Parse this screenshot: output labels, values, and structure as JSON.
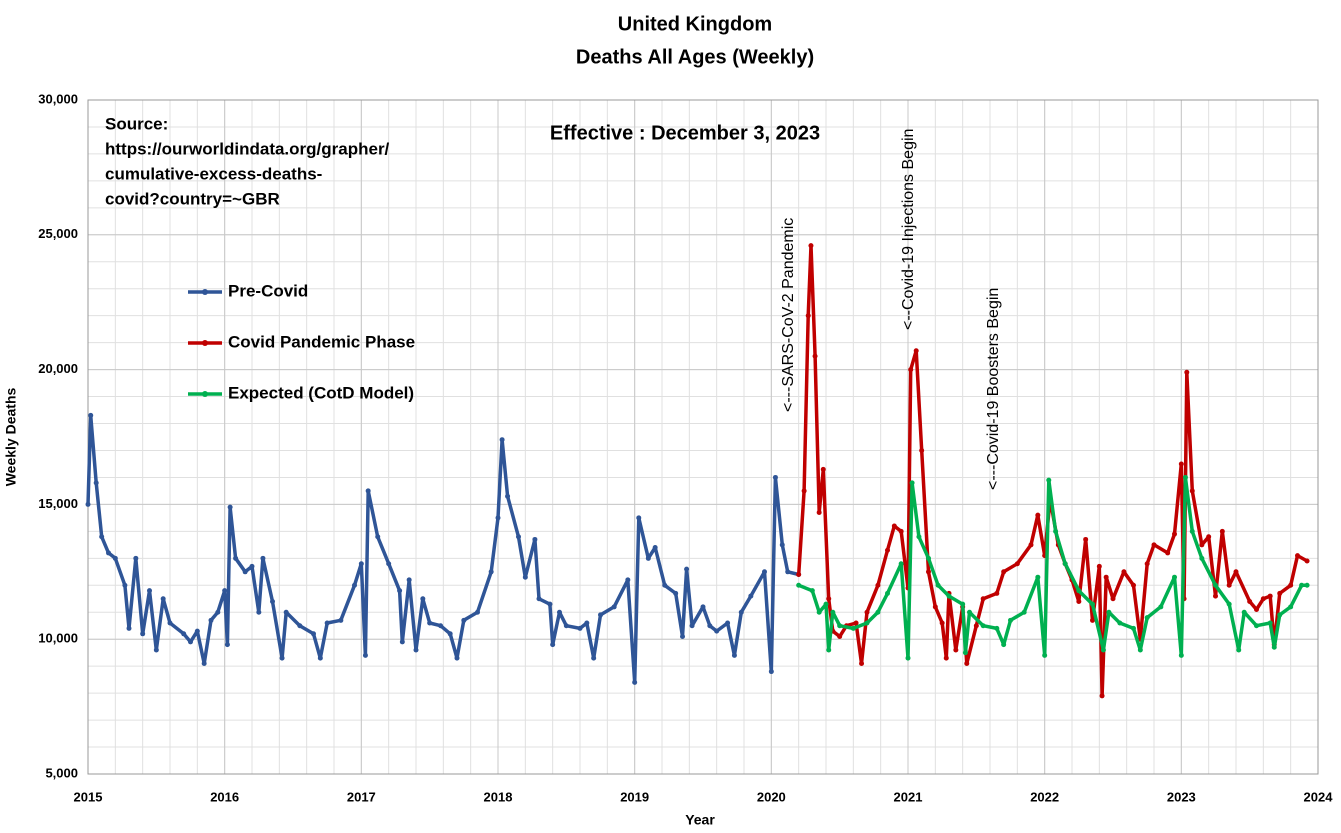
{
  "chart_data": {
    "type": "line",
    "title": "United Kingdom",
    "subtitle": "Deaths All Ages (Weekly)",
    "x_label": "Year",
    "y_label": "Weekly Deaths",
    "xlim": [
      2015,
      2024
    ],
    "ylim": [
      5000,
      30000
    ],
    "xticks": [
      2015,
      2016,
      2017,
      2018,
      2019,
      2020,
      2021,
      2022,
      2023,
      2024
    ],
    "yticks": [
      {
        "value": 5000,
        "label": "5,000"
      },
      {
        "value": 10000,
        "label": "10,000"
      },
      {
        "value": 15000,
        "label": "15,000"
      },
      {
        "value": 20000,
        "label": "20,000"
      },
      {
        "value": 25000,
        "label": "25,000"
      },
      {
        "value": 30000,
        "label": "30,000"
      }
    ],
    "grid": true,
    "legend": "upper left",
    "source": [
      "Source:",
      "https://ourworldindata.org/grapher/",
      "cumulative-excess-deaths-",
      "covid?country=~GBR"
    ],
    "effective": "Effective : December 3, 2023",
    "annotations": [
      {
        "text": "<---SARS-CoV-2 Pandemic",
        "x": 2020.2,
        "color": "#000000"
      },
      {
        "text": "<--Covid-19 Injections Begin",
        "x": 2021.08,
        "color": "#c00000"
      },
      {
        "text": "<---Covid-19 Boosters Begin",
        "x": 2021.7,
        "color": "#00b050"
      }
    ],
    "series": [
      {
        "name": "Pre-Covid",
        "color": "#2f5597",
        "x": [
          2015.0,
          2015.02,
          2015.06,
          2015.1,
          2015.15,
          2015.2,
          2015.27,
          2015.3,
          2015.35,
          2015.4,
          2015.45,
          2015.5,
          2015.55,
          2015.6,
          2015.7,
          2015.75,
          2015.8,
          2015.85,
          2015.9,
          2015.95,
          2016.0,
          2016.02,
          2016.04,
          2016.08,
          2016.15,
          2016.2,
          2016.25,
          2016.28,
          2016.35,
          2016.42,
          2016.45,
          2016.55,
          2016.65,
          2016.7,
          2016.75,
          2016.85,
          2016.95,
          2017.0,
          2017.03,
          2017.05,
          2017.12,
          2017.2,
          2017.28,
          2017.3,
          2017.35,
          2017.4,
          2017.45,
          2017.5,
          2017.58,
          2017.65,
          2017.7,
          2017.75,
          2017.85,
          2017.95,
          2018.0,
          2018.03,
          2018.07,
          2018.15,
          2018.2,
          2018.27,
          2018.3,
          2018.38,
          2018.4,
          2018.45,
          2018.5,
          2018.6,
          2018.65,
          2018.7,
          2018.75,
          2018.85,
          2018.95,
          2019.0,
          2019.03,
          2019.1,
          2019.15,
          2019.22,
          2019.3,
          2019.35,
          2019.38,
          2019.42,
          2019.5,
          2019.55,
          2019.6,
          2019.68,
          2019.73,
          2019.78,
          2019.85,
          2019.95,
          2020.0,
          2020.03,
          2020.08,
          2020.12,
          2020.2
        ],
        "values": [
          15000,
          18300,
          15800,
          13800,
          13200,
          13000,
          12000,
          10400,
          13000,
          10200,
          11800,
          9600,
          11500,
          10600,
          10200,
          9900,
          10300,
          9100,
          10700,
          11000,
          11800,
          9800,
          14900,
          13000,
          12500,
          12700,
          11000,
          13000,
          11400,
          9300,
          11000,
          10500,
          10200,
          9300,
          10600,
          10700,
          12000,
          12800,
          9400,
          15500,
          13800,
          12800,
          11800,
          9900,
          12200,
          9600,
          11500,
          10600,
          10500,
          10200,
          9300,
          10700,
          11000,
          12500,
          14500,
          17400,
          15300,
          13800,
          12300,
          13700,
          11500,
          11300,
          9800,
          11000,
          10500,
          10400,
          10600,
          9300,
          10900,
          11200,
          12200,
          8400,
          14500,
          13000,
          13400,
          12000,
          11700,
          10100,
          12600,
          10500,
          11200,
          10500,
          10300,
          10600,
          9400,
          11000,
          11600,
          12500,
          8800,
          16000,
          13500,
          12500,
          12400
        ]
      },
      {
        "name": "Covid Pandemic Phase",
        "color": "#c00000",
        "x": [
          2020.2,
          2020.24,
          2020.27,
          2020.29,
          2020.32,
          2020.35,
          2020.38,
          2020.42,
          2020.45,
          2020.5,
          2020.55,
          2020.62,
          2020.66,
          2020.7,
          2020.78,
          2020.85,
          2020.9,
          2020.95,
          2021.0,
          2021.02,
          2021.06,
          2021.1,
          2021.15,
          2021.2,
          2021.25,
          2021.28,
          2021.3,
          2021.35,
          2021.4,
          2021.43,
          2021.5,
          2021.55,
          2021.65,
          2021.7,
          2021.8,
          2021.9,
          2021.95,
          2022.0,
          2022.04,
          2022.1,
          2022.15,
          2022.2,
          2022.25,
          2022.3,
          2022.35,
          2022.4,
          2022.42,
          2022.45,
          2022.5,
          2022.58,
          2022.65,
          2022.7,
          2022.75,
          2022.8,
          2022.9,
          2022.95,
          2023.0,
          2023.02,
          2023.04,
          2023.08,
          2023.15,
          2023.2,
          2023.25,
          2023.3,
          2023.35,
          2023.4,
          2023.5,
          2023.55,
          2023.6,
          2023.65,
          2023.68,
          2023.72,
          2023.8,
          2023.85,
          2023.92
        ],
        "values": [
          12400,
          15500,
          22000,
          24600,
          20500,
          14700,
          16300,
          11500,
          10300,
          10100,
          10500,
          10600,
          9100,
          11000,
          12000,
          13300,
          14200,
          14000,
          11900,
          20000,
          20700,
          17000,
          12500,
          11200,
          10600,
          9300,
          11700,
          9600,
          11200,
          9100,
          10500,
          11500,
          11700,
          12500,
          12800,
          13500,
          14600,
          13100,
          15200,
          13500,
          12800,
          12200,
          11400,
          13700,
          10700,
          12700,
          7900,
          12300,
          11500,
          12500,
          12000,
          10000,
          12800,
          13500,
          13200,
          13900,
          16500,
          11500,
          19900,
          15500,
          13500,
          13800,
          11600,
          14000,
          12000,
          12500,
          11400,
          11100,
          11500,
          11600,
          9800,
          11700,
          12000,
          13100,
          12900
        ]
      },
      {
        "name": "Expected (CotD Model)",
        "color": "#00b050",
        "x": [
          2020.2,
          2020.3,
          2020.35,
          2020.4,
          2020.42,
          2020.45,
          2020.5,
          2020.6,
          2020.7,
          2020.78,
          2020.85,
          2020.95,
          2021.0,
          2021.03,
          2021.08,
          2021.15,
          2021.22,
          2021.3,
          2021.4,
          2021.42,
          2021.45,
          2021.55,
          2021.65,
          2021.7,
          2021.75,
          2021.85,
          2021.95,
          2022.0,
          2022.03,
          2022.08,
          2022.15,
          2022.25,
          2022.35,
          2022.43,
          2022.47,
          2022.55,
          2022.65,
          2022.7,
          2022.75,
          2022.85,
          2022.95,
          2023.0,
          2023.03,
          2023.08,
          2023.15,
          2023.25,
          2023.35,
          2023.42,
          2023.46,
          2023.55,
          2023.65,
          2023.68,
          2023.72,
          2023.8,
          2023.88,
          2023.92
        ],
        "values": [
          12000,
          11800,
          11000,
          11300,
          9600,
          11000,
          10500,
          10400,
          10600,
          11000,
          11700,
          12800,
          9300,
          15800,
          13800,
          13000,
          12000,
          11600,
          11300,
          9500,
          11000,
          10500,
          10400,
          9800,
          10700,
          11000,
          12300,
          9400,
          15900,
          14000,
          12800,
          11800,
          11300,
          9600,
          11000,
          10600,
          10400,
          9600,
          10800,
          11200,
          12300,
          9400,
          16000,
          14000,
          13000,
          12000,
          11300,
          9600,
          11000,
          10500,
          10600,
          9700,
          10900,
          11200,
          12000,
          12000
        ]
      }
    ]
  }
}
